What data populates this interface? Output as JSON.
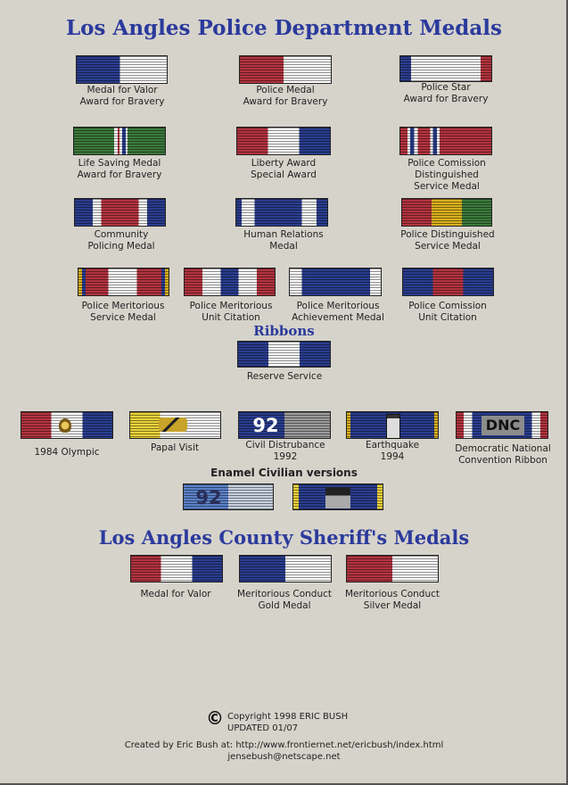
{
  "title": "Los Angles Police Department Medals",
  "ribbons_heading": "Ribbons",
  "enamel_heading": "Enamel Civilian versions",
  "sheriff_title": "Los Angles County Sheriff's Medals",
  "lapd_medals": [
    {
      "lines": [
        "Medal for Valor",
        "Award for Bravery"
      ]
    },
    {
      "lines": [
        "Police Medal",
        "Award for Bravery"
      ]
    },
    {
      "lines": [
        "Police Star",
        "Award for Bravery"
      ]
    },
    {
      "lines": [
        "Life Saving Medal",
        "Award for Bravery"
      ]
    },
    {
      "lines": [
        "Liberty Award",
        "Special Award"
      ]
    },
    {
      "lines": [
        "Police Comission",
        "Distinguished",
        "Service Medal"
      ]
    },
    {
      "lines": [
        "Community",
        "Policing Medal"
      ]
    },
    {
      "lines": [
        "Human Relations",
        "Medal"
      ]
    },
    {
      "lines": [
        "Police Distinguished",
        "Service Medal"
      ]
    },
    {
      "lines": [
        "Police Meritorious",
        "Service Medal"
      ]
    },
    {
      "lines": [
        "Police Meritorious",
        "Unit Citation"
      ]
    },
    {
      "lines": [
        "Police Meritorious",
        "Achievement Medal"
      ]
    },
    {
      "lines": [
        "Police Comission",
        "Unit Citation"
      ]
    }
  ],
  "reserve": {
    "lines": [
      "Reserve Service"
    ]
  },
  "ribbons": [
    {
      "lines": [
        "1984 Olympic"
      ]
    },
    {
      "lines": [
        "Papal Visit"
      ]
    },
    {
      "lines": [
        "Civil Distrubance",
        "1992"
      ],
      "badge": "92"
    },
    {
      "lines": [
        "Earthquake",
        "1994"
      ]
    },
    {
      "lines": [
        "Democratic National",
        "Convention Ribbon"
      ],
      "badge": "DNC"
    }
  ],
  "enamel": [
    {
      "badge": "92"
    },
    {
      "badge": ""
    }
  ],
  "sheriff": [
    {
      "lines": [
        "Medal for Valor"
      ]
    },
    {
      "lines": [
        "Meritorious Conduct",
        "Gold Medal"
      ]
    },
    {
      "lines": [
        "Meritorious Conduct",
        "Silver Medal"
      ]
    }
  ],
  "footer": {
    "copyright_symbol": "©",
    "copyright": "Copyright 1998 ERIC BUSH",
    "updated": "UPDATED 01/07",
    "created": "Created by Eric Bush at: http://www.frontiernet.net/ericbush/index.html",
    "email": "jensebush@netscape.net"
  },
  "colors": {
    "blue": "#2a3d8f",
    "red": "#b3343f",
    "green": "#3c7a3c",
    "gold": "#d9b01e",
    "white": "#ffffff",
    "title": "#2b3a9c"
  }
}
